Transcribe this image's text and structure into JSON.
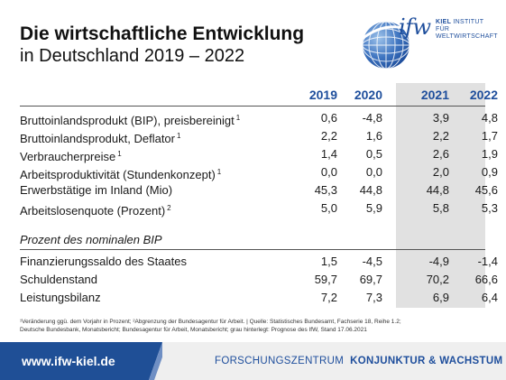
{
  "title": {
    "line1": "Die wirtschaftliche Entwicklung",
    "line2": "in Deutschland 2019 – 2022"
  },
  "logo": {
    "mark": "ifw",
    "institute_bold": "KIEL",
    "institute_line1": "INSTITUT FÜR",
    "institute_line2": "WELTWIRTSCHAFT",
    "icon": "globe-icon"
  },
  "table": {
    "years": [
      "2019",
      "2020",
      "2021",
      "2022"
    ],
    "rows": [
      {
        "label": "Bruttoinlandsprodukt (BIP), preisbereinigt",
        "note": "1",
        "values": [
          "0,6",
          "-4,8",
          "3,9",
          "4,8"
        ]
      },
      {
        "label": "Bruttoinlandsprodukt, Deflator",
        "note": "1",
        "values": [
          "2,2",
          "1,6",
          "2,2",
          "1,7"
        ]
      },
      {
        "label": "Verbraucherpreise",
        "note": "1",
        "values": [
          "1,4",
          "0,5",
          "2,6",
          "1,9"
        ]
      },
      {
        "label": "Arbeitsproduktivität (Stundenkonzept)",
        "note": "1",
        "values": [
          "0,0",
          "0,0",
          "2,0",
          "0,9"
        ]
      },
      {
        "label": "Erwerbstätige im Inland (Mio)",
        "note": "",
        "values": [
          "45,3",
          "44,8",
          "44,8",
          "45,6"
        ]
      },
      {
        "label": "Arbeitslosenquote (Prozent)",
        "note": "2",
        "values": [
          "5,0",
          "5,9",
          "5,8",
          "5,3"
        ]
      }
    ],
    "section_title": "Prozent des nominalen BIP",
    "section_rows": [
      {
        "label": "Finanzierungssaldo des Staates",
        "values": [
          "1,5",
          "-4,5",
          "-4,9",
          "-1,4"
        ]
      },
      {
        "label": "Schuldenstand",
        "values": [
          "59,7",
          "69,7",
          "70,2",
          "66,6"
        ]
      },
      {
        "label": "Leistungsbilanz",
        "values": [
          "7,2",
          "7,3",
          "6,9",
          "6,4"
        ]
      }
    ],
    "forecast_shade_color": "#e1e1e1"
  },
  "footnote": {
    "line1": "¹Veränderung ggü. dem Vorjahr in Prozent; ²Abgrenzung der Bundesagentur für Arbeit. | Quelle: Statistisches Bundesamt, Fachserie 18, Reihe 1.2;",
    "line2": "Deutsche Bundesbank, Monatsbericht; Bundesagentur für Arbeit, Monatsbericht; grau hinterlegt: Prognose des IfW, Stand 17.06.2021"
  },
  "footer": {
    "url": "www.ifw-kiel.de",
    "center_light": "FORSCHUNGSZENTRUM",
    "center_bold": "KONJUNKTUR & WACHSTUM"
  },
  "colors": {
    "brand_blue": "#1e4e9c",
    "footer_blue": "#1f4f96"
  }
}
